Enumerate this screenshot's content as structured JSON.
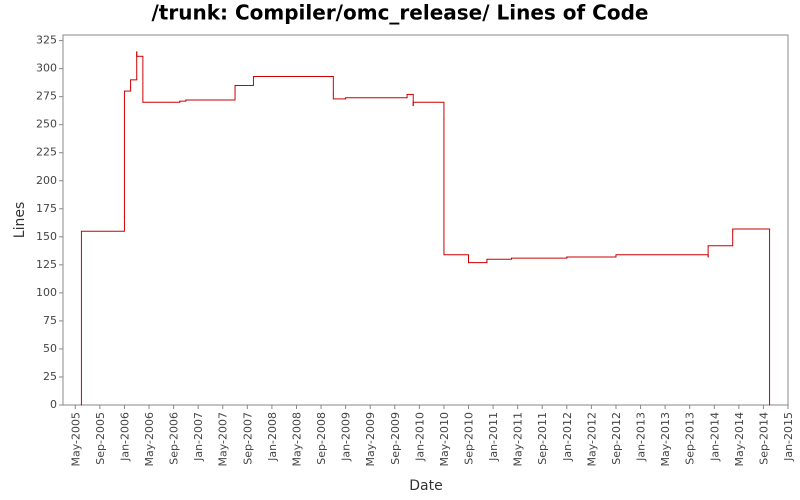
{
  "chart_data": {
    "type": "step-line",
    "title": "/trunk: Compiler/omc_release/ Lines of Code",
    "x_label": "Date",
    "y_label": "Lines",
    "series": [
      {
        "name": "Lines",
        "color": "#cc0000",
        "x": [
          "2005-06",
          "2005-06",
          "2006-01",
          "2006-01",
          "2006-02",
          "2006-02",
          "2006-03",
          "2006-03",
          "2006-04",
          "2006-10",
          "2006-11",
          "2007-07",
          "2007-07",
          "2007-10",
          "2008-11",
          "2008-11",
          "2009-01",
          "2009-11",
          "2009-12",
          "2009-12",
          "2010-05",
          "2010-05",
          "2010-05",
          "2010-09",
          "2010-12",
          "2010-12",
          "2011-04",
          "2012-01",
          "2012-09",
          "2013-12",
          "2013-12",
          "2014-04",
          "2014-04",
          "2014-10"
        ],
        "values": [
          0,
          155,
          168,
          280,
          283,
          290,
          315,
          311,
          270,
          271,
          272,
          281,
          285,
          293,
          277,
          273,
          274,
          277,
          267,
          270,
          265,
          255,
          134,
          127,
          129,
          130,
          131,
          132,
          134,
          132,
          142,
          155,
          157,
          0
        ]
      }
    ],
    "xlim": [
      "2005-03",
      "2015-01"
    ],
    "xticks": [
      {
        "value": "2005-05",
        "label": "May-2005"
      },
      {
        "value": "2005-09",
        "label": "Sep-2005"
      },
      {
        "value": "2006-01",
        "label": "Jan-2006"
      },
      {
        "value": "2006-05",
        "label": "May-2006"
      },
      {
        "value": "2006-09",
        "label": "Sep-2006"
      },
      {
        "value": "2007-01",
        "label": "Jan-2007"
      },
      {
        "value": "2007-05",
        "label": "May-2007"
      },
      {
        "value": "2007-09",
        "label": "Sep-2007"
      },
      {
        "value": "2008-01",
        "label": "Jan-2008"
      },
      {
        "value": "2008-05",
        "label": "May-2008"
      },
      {
        "value": "2008-09",
        "label": "Sep-2008"
      },
      {
        "value": "2009-01",
        "label": "Jan-2009"
      },
      {
        "value": "2009-05",
        "label": "May-2009"
      },
      {
        "value": "2009-09",
        "label": "Sep-2009"
      },
      {
        "value": "2010-01",
        "label": "Jan-2010"
      },
      {
        "value": "2010-05",
        "label": "May-2010"
      },
      {
        "value": "2010-09",
        "label": "Sep-2010"
      },
      {
        "value": "2011-01",
        "label": "Jan-2011"
      },
      {
        "value": "2011-05",
        "label": "May-2011"
      },
      {
        "value": "2011-09",
        "label": "Sep-2011"
      },
      {
        "value": "2012-01",
        "label": "Jan-2012"
      },
      {
        "value": "2012-05",
        "label": "May-2012"
      },
      {
        "value": "2012-09",
        "label": "Sep-2012"
      },
      {
        "value": "2013-01",
        "label": "Jan-2013"
      },
      {
        "value": "2013-05",
        "label": "May-2013"
      },
      {
        "value": "2013-09",
        "label": "Sep-2013"
      },
      {
        "value": "2014-01",
        "label": "Jan-2014"
      },
      {
        "value": "2014-05",
        "label": "May-2014"
      },
      {
        "value": "2014-09",
        "label": "Sep-2014"
      },
      {
        "value": "2015-01",
        "label": "Jan-2015"
      }
    ],
    "ylim": [
      0,
      330
    ],
    "yticks": [
      0,
      25,
      50,
      75,
      100,
      125,
      150,
      175,
      200,
      225,
      250,
      275,
      300,
      325
    ]
  }
}
